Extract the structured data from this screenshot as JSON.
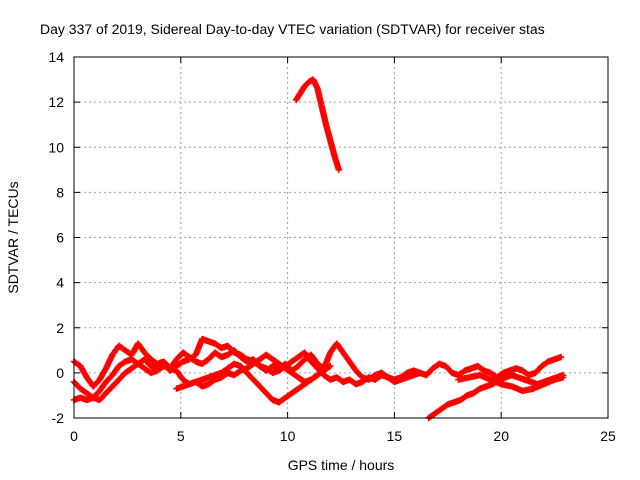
{
  "chart_data": {
    "type": "scatter",
    "title": "Day 337 of 2019, Sidereal Day-to-day VTEC variation (SDTVAR) for receiver stas",
    "xlabel": "GPS time / hours",
    "ylabel": "SDTVAR / TECUs",
    "xlim": [
      0,
      25
    ],
    "ylim": [
      -2,
      14
    ],
    "xticks": [
      "0",
      "5",
      "10",
      "15",
      "20",
      "25"
    ],
    "yticks": [
      "-2",
      "0",
      "2",
      "4",
      "6",
      "8",
      "10",
      "12",
      "14"
    ],
    "grid": true,
    "marker": "plus",
    "color": "#ff0000",
    "series": [
      {
        "x": [
          0.0,
          0.3,
          0.6,
          0.9,
          1.2,
          1.5,
          1.8,
          2.1,
          2.4,
          2.7,
          3.0,
          3.3,
          3.6,
          3.9,
          4.2,
          4.5,
          4.8,
          5.1,
          5.4,
          5.7,
          6.0,
          6.3,
          6.6,
          6.9,
          7.2,
          7.5,
          7.8,
          8.1,
          8.4,
          8.7,
          9.0,
          9.3,
          9.6,
          9.9,
          10.2,
          10.5,
          10.8,
          11.1,
          11.4,
          11.7,
          12.0,
          12.3,
          12.6,
          12.9,
          13.2,
          13.5,
          13.8,
          14.1,
          14.4,
          14.7,
          15.0,
          15.3,
          15.6,
          15.9,
          16.2,
          16.5,
          16.8,
          17.1,
          17.4,
          17.7,
          18.0,
          18.3,
          18.6,
          18.9,
          19.2,
          19.5,
          19.8,
          20.1,
          20.4,
          20.7,
          21.0,
          21.3,
          21.6,
          21.9,
          22.2,
          22.5,
          22.8
        ],
        "y": [
          0.5,
          0.3,
          -0.2,
          -0.6,
          -0.3,
          0.2,
          0.8,
          1.2,
          1.0,
          0.8,
          1.3,
          0.9,
          0.6,
          0.4,
          0.5,
          0.2,
          0.6,
          0.9,
          0.7,
          0.5,
          0.4,
          0.6,
          0.9,
          0.7,
          0.8,
          1.0,
          0.7,
          0.5,
          0.6,
          0.3,
          0.1,
          0.3,
          0.2,
          0.4,
          0.1,
          0.3,
          0.6,
          0.8,
          0.4,
          0.2,
          0.9,
          1.3,
          0.9,
          0.5,
          0.1,
          -0.2,
          -0.3,
          -0.1,
          0.0,
          -0.2,
          -0.3,
          -0.2,
          0.0,
          0.1,
          0.0,
          -0.1,
          0.2,
          0.4,
          0.3,
          0.0,
          -0.1,
          0.1,
          0.2,
          0.3,
          0.1,
          0.0,
          -0.2,
          0.0,
          0.1,
          0.2,
          0.1,
          -0.1,
          0.0,
          0.3,
          0.5,
          0.6,
          0.7
        ]
      },
      {
        "x": [
          0.0,
          0.3,
          0.6,
          0.9,
          1.2,
          1.5,
          1.8,
          2.1,
          2.4,
          2.7,
          3.0,
          3.3,
          3.6,
          3.9,
          4.2,
          4.5,
          4.8,
          5.1,
          5.4,
          5.7,
          6.0,
          6.3,
          6.6,
          6.9,
          7.2,
          7.5,
          7.8,
          8.1,
          8.4,
          8.7,
          9.0,
          9.3,
          9.6,
          9.9,
          10.2,
          10.5,
          10.8,
          11.1,
          11.4,
          11.7,
          12.0,
          12.3,
          12.6,
          12.9,
          13.2,
          13.5,
          13.8,
          14.1,
          14.4,
          14.7,
          15.0,
          15.3,
          15.6,
          15.9,
          16.2
        ],
        "y": [
          -0.4,
          -0.7,
          -0.9,
          -1.1,
          -1.2,
          -0.9,
          -0.6,
          -0.3,
          0.0,
          0.2,
          0.4,
          0.6,
          0.3,
          0.2,
          0.4,
          0.1,
          0.3,
          0.5,
          0.6,
          0.8,
          1.5,
          1.4,
          1.3,
          1.1,
          1.2,
          0.9,
          0.8,
          0.6,
          0.5,
          0.3,
          0.2,
          0.0,
          0.1,
          0.3,
          0.5,
          0.7,
          0.9,
          0.5,
          0.2,
          -0.1,
          -0.3,
          -0.2,
          -0.4,
          -0.3,
          -0.5,
          -0.4,
          -0.2,
          -0.3,
          -0.1,
          -0.2,
          -0.4,
          -0.3,
          -0.2,
          -0.1,
          0.0
        ]
      },
      {
        "x": [
          0.0,
          0.3,
          0.6,
          0.9,
          1.2,
          1.5,
          1.8,
          2.1,
          2.4,
          2.7,
          3.0,
          3.3,
          3.6,
          3.9,
          4.2,
          4.5,
          4.8,
          5.1,
          5.4,
          5.7,
          6.0,
          6.3,
          6.6,
          6.9,
          7.2,
          7.5,
          7.8,
          8.1,
          8.4,
          8.7,
          9.0,
          9.3,
          9.6,
          9.9,
          10.2,
          10.5,
          10.8,
          11.1,
          11.4,
          11.7,
          12.0
        ],
        "y": [
          -1.2,
          -1.1,
          -1.2,
          -1.1,
          -0.8,
          -0.4,
          -0.1,
          0.3,
          0.5,
          0.6,
          0.4,
          0.2,
          0.0,
          0.1,
          0.3,
          0.2,
          0.1,
          -0.3,
          -0.5,
          -0.4,
          -0.3,
          -0.2,
          -0.1,
          0.0,
          0.2,
          0.4,
          0.3,
          0.0,
          -0.3,
          -0.6,
          -0.9,
          -1.2,
          -1.3,
          -1.1,
          -0.9,
          -0.7,
          -0.5,
          -0.3,
          -0.1,
          0.1,
          0.3
        ]
      },
      {
        "x": [
          4.8,
          5.1,
          5.4,
          5.7,
          6.0,
          6.3,
          6.6,
          6.9,
          7.2,
          7.5,
          7.8,
          8.1,
          8.4,
          8.7,
          9.0,
          9.3,
          9.6,
          9.9,
          10.2,
          10.5,
          10.8,
          11.1,
          11.4
        ],
        "y": [
          -0.7,
          -0.6,
          -0.5,
          -0.4,
          -0.6,
          -0.5,
          -0.3,
          -0.2,
          0.0,
          -0.1,
          0.1,
          0.2,
          0.4,
          0.6,
          0.8,
          0.6,
          0.4,
          0.2,
          0.0,
          -0.2,
          -0.4,
          -0.3,
          -0.1
        ]
      },
      {
        "x": [
          16.6,
          16.9,
          17.2,
          17.5,
          17.8,
          18.1,
          18.4,
          18.7,
          19.0,
          19.3,
          19.6,
          19.9,
          20.2,
          20.5,
          20.8,
          21.1,
          21.4,
          21.7,
          22.0,
          22.3,
          22.6,
          22.9
        ],
        "y": [
          -2.0,
          -1.8,
          -1.6,
          -1.4,
          -1.3,
          -1.2,
          -1.0,
          -0.9,
          -0.7,
          -0.6,
          -0.5,
          -0.3,
          -0.2,
          -0.1,
          -0.2,
          -0.3,
          -0.4,
          -0.5,
          -0.4,
          -0.3,
          -0.2,
          -0.1
        ]
      },
      {
        "x": [
          18.0,
          18.5,
          19.0,
          19.5,
          20.0,
          20.5,
          21.0,
          21.5,
          22.0,
          22.5,
          22.9
        ],
        "y": [
          -0.3,
          -0.2,
          -0.1,
          -0.3,
          -0.5,
          -0.6,
          -0.8,
          -0.7,
          -0.5,
          -0.3,
          -0.2
        ]
      },
      {
        "x": [
          10.4,
          10.6,
          10.8,
          11.0,
          11.2,
          11.4,
          11.6,
          11.8,
          12.0,
          12.2,
          12.4
        ],
        "y": [
          12.1,
          12.4,
          12.7,
          12.9,
          13.0,
          12.6,
          11.8,
          11.0,
          10.3,
          9.6,
          9.0
        ]
      }
    ]
  }
}
